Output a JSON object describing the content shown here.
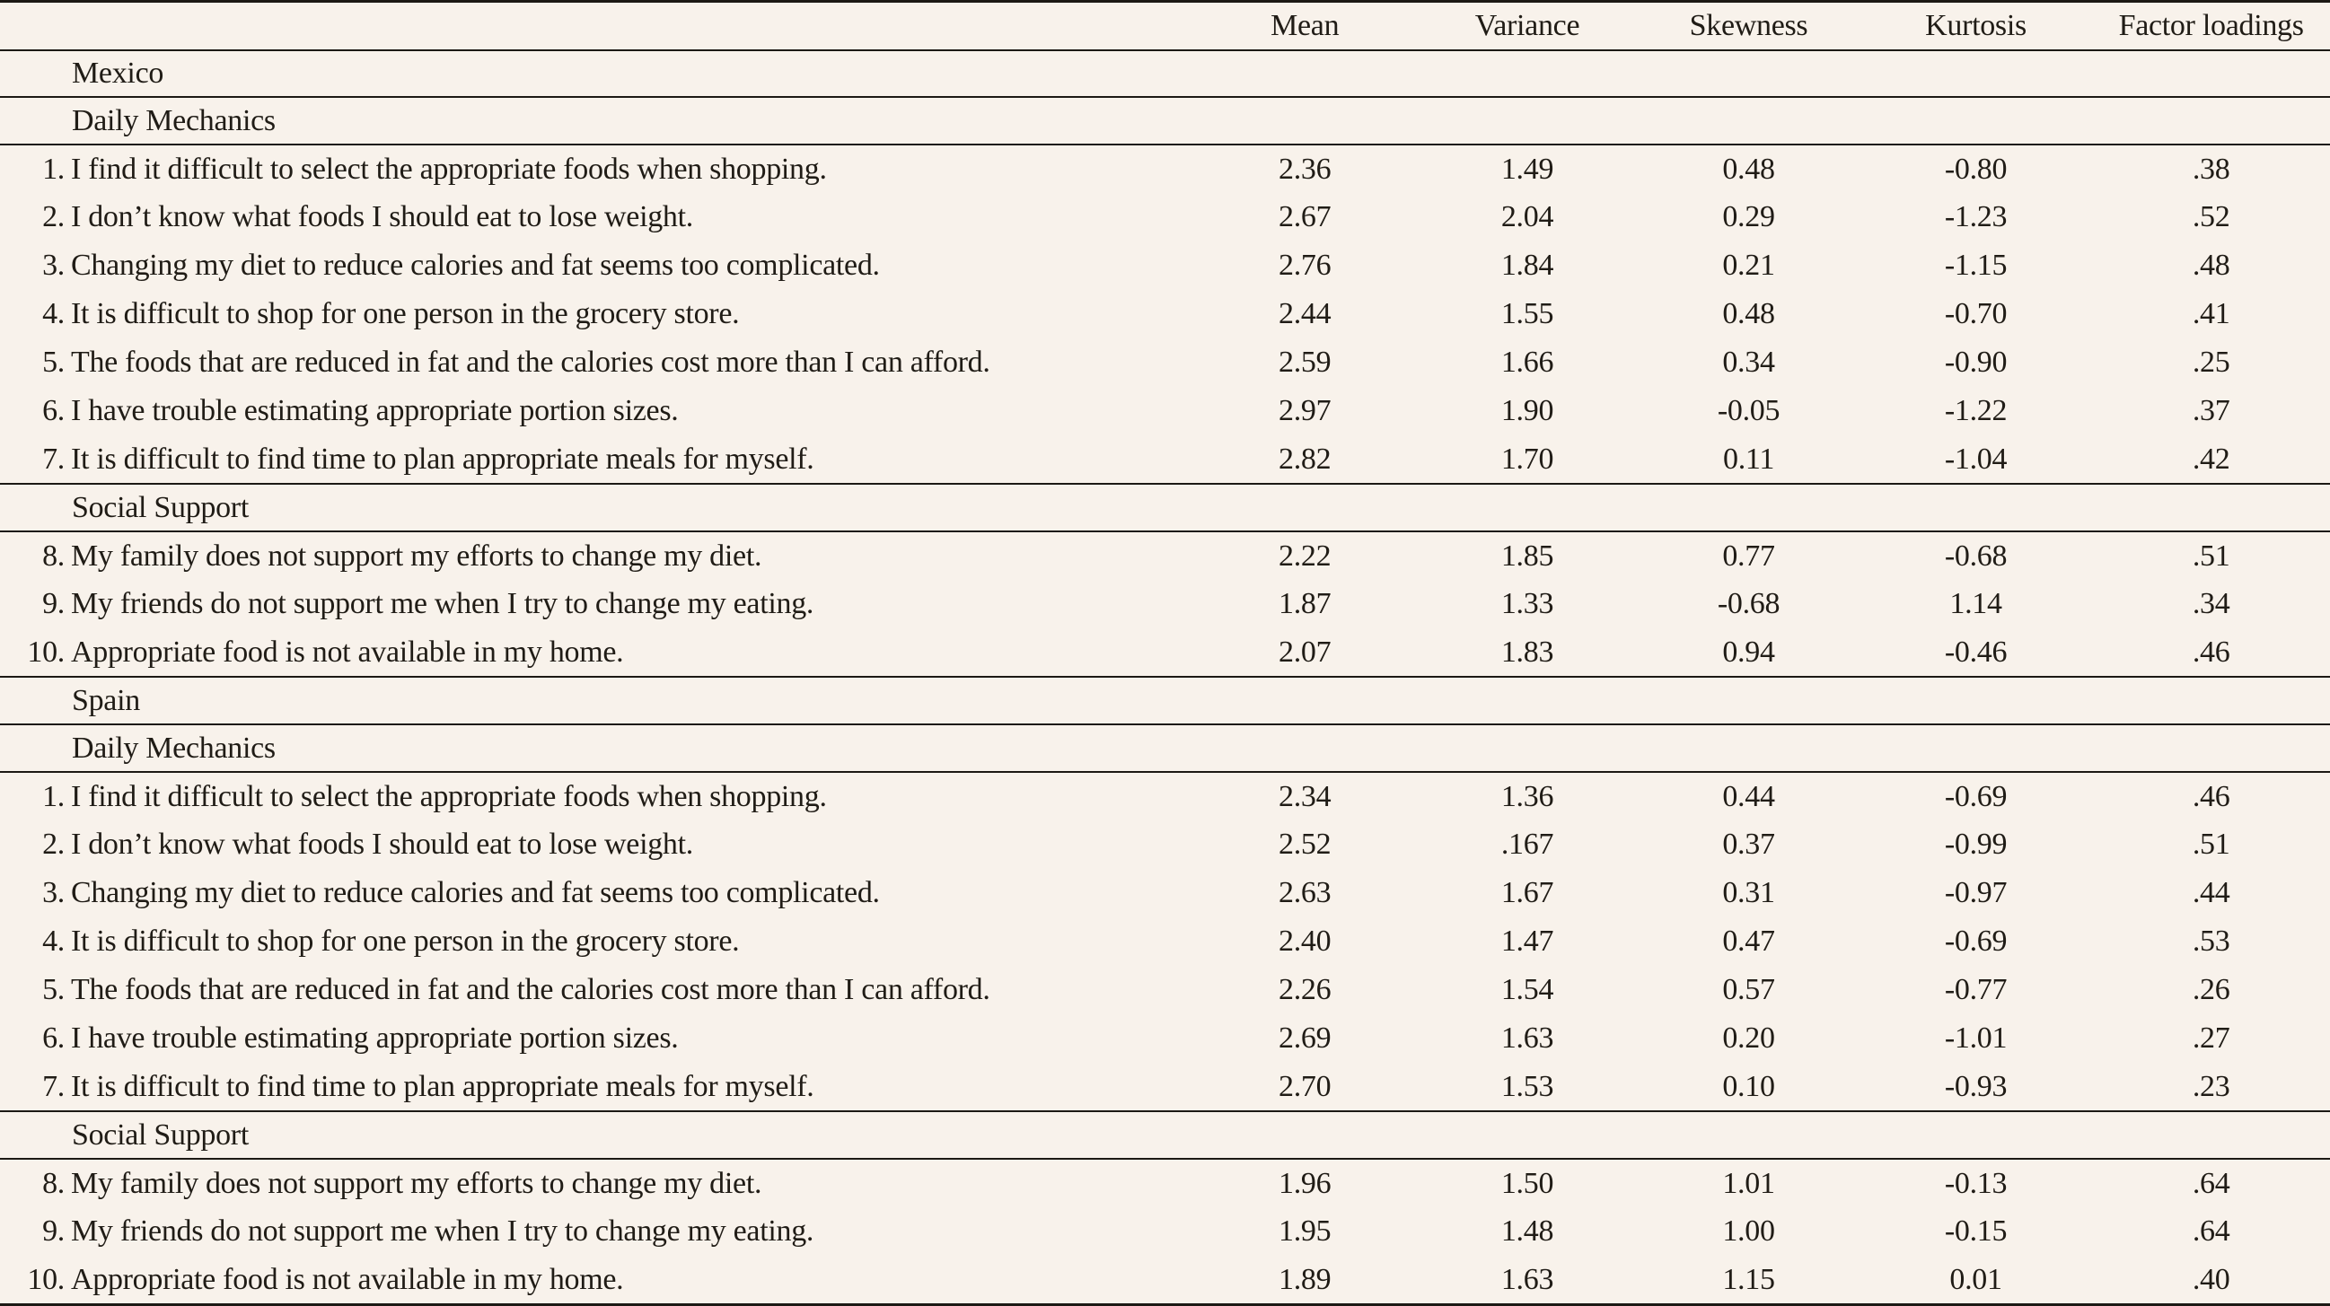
{
  "colors": {
    "background": "#f8f2eb",
    "text": "#201c16",
    "rule": "#1c1914"
  },
  "table": {
    "columns": [
      "",
      "Mean",
      "Variance",
      "Skewness",
      "Kurtosis",
      "Factor loadings"
    ],
    "sections": [
      {
        "country": "Mexico",
        "subscales": [
          {
            "name": "Daily Mechanics",
            "items": [
              {
                "num": "1.",
                "text": "I find it difficult to select the appropriate foods when shopping.",
                "mean": "2.36",
                "variance": "1.49",
                "skewness": "0.48",
                "kurtosis": "-0.80",
                "factor_loading": ".38"
              },
              {
                "num": "2.",
                "text": "I don’t know what foods I should eat to lose weight.",
                "mean": "2.67",
                "variance": "2.04",
                "skewness": "0.29",
                "kurtosis": "-1.23",
                "factor_loading": ".52"
              },
              {
                "num": "3.",
                "text": "Changing my diet to reduce calories and fat seems too complicated.",
                "mean": "2.76",
                "variance": "1.84",
                "skewness": "0.21",
                "kurtosis": "-1.15",
                "factor_loading": ".48"
              },
              {
                "num": "4.",
                "text": "It is difficult to shop for one person in the grocery store.",
                "mean": "2.44",
                "variance": "1.55",
                "skewness": "0.48",
                "kurtosis": "-0.70",
                "factor_loading": ".41"
              },
              {
                "num": "5.",
                "text": "The foods that are reduced in fat and the calories cost more than I can afford.",
                "mean": "2.59",
                "variance": "1.66",
                "skewness": "0.34",
                "kurtosis": "-0.90",
                "factor_loading": ".25"
              },
              {
                "num": "6.",
                "text": "I have trouble estimating appropriate portion sizes.",
                "mean": "2.97",
                "variance": "1.90",
                "skewness": "-0.05",
                "kurtosis": "-1.22",
                "factor_loading": ".37"
              },
              {
                "num": "7.",
                "text": "It is difficult to find time to plan appropriate meals for myself.",
                "mean": "2.82",
                "variance": "1.70",
                "skewness": "0.11",
                "kurtosis": "-1.04",
                "factor_loading": ".42"
              }
            ]
          },
          {
            "name": "Social Support",
            "items": [
              {
                "num": "8.",
                "text": "My family does not support my efforts to change my diet.",
                "mean": "2.22",
                "variance": "1.85",
                "skewness": "0.77",
                "kurtosis": "-0.68",
                "factor_loading": ".51"
              },
              {
                "num": "9.",
                "text": "My friends do not support me when I try to change my eating.",
                "mean": "1.87",
                "variance": "1.33",
                "skewness": "-0.68",
                "kurtosis": "1.14",
                "factor_loading": ".34"
              },
              {
                "num": "10.",
                "text": "Appropriate food is not available in my home.",
                "mean": "2.07",
                "variance": "1.83",
                "skewness": "0.94",
                "kurtosis": "-0.46",
                "factor_loading": ".46"
              }
            ]
          }
        ]
      },
      {
        "country": "Spain",
        "subscales": [
          {
            "name": "Daily Mechanics",
            "items": [
              {
                "num": "1.",
                "text": "I find it difficult to select the appropriate foods when shopping.",
                "mean": "2.34",
                "variance": "1.36",
                "skewness": "0.44",
                "kurtosis": "-0.69",
                "factor_loading": ".46"
              },
              {
                "num": "2.",
                "text": "I don’t know what foods I should eat to lose weight.",
                "mean": "2.52",
                "variance": ".167",
                "skewness": "0.37",
                "kurtosis": "-0.99",
                "factor_loading": ".51"
              },
              {
                "num": "3.",
                "text": "Changing my diet to reduce calories and fat seems too complicated.",
                "mean": "2.63",
                "variance": "1.67",
                "skewness": "0.31",
                "kurtosis": "-0.97",
                "factor_loading": ".44"
              },
              {
                "num": "4.",
                "text": "It is difficult to shop for one person in the grocery store.",
                "mean": "2.40",
                "variance": "1.47",
                "skewness": "0.47",
                "kurtosis": "-0.69",
                "factor_loading": ".53"
              },
              {
                "num": "5.",
                "text": "The foods that are reduced in fat and the calories cost more than I can afford.",
                "mean": "2.26",
                "variance": "1.54",
                "skewness": "0.57",
                "kurtosis": "-0.77",
                "factor_loading": ".26"
              },
              {
                "num": "6.",
                "text": "I have trouble estimating appropriate portion sizes.",
                "mean": "2.69",
                "variance": "1.63",
                "skewness": "0.20",
                "kurtosis": "-1.01",
                "factor_loading": ".27"
              },
              {
                "num": "7.",
                "text": "It is difficult to find time to plan appropriate meals for myself.",
                "mean": "2.70",
                "variance": "1.53",
                "skewness": "0.10",
                "kurtosis": "-0.93",
                "factor_loading": ".23"
              }
            ]
          },
          {
            "name": "Social Support",
            "items": [
              {
                "num": "8.",
                "text": "My family does not support my efforts to change my diet.",
                "mean": "1.96",
                "variance": "1.50",
                "skewness": "1.01",
                "kurtosis": "-0.13",
                "factor_loading": ".64"
              },
              {
                "num": "9.",
                "text": "My friends do not support me when I try to change my eating.",
                "mean": "1.95",
                "variance": "1.48",
                "skewness": "1.00",
                "kurtosis": "-0.15",
                "factor_loading": ".64"
              },
              {
                "num": "10.",
                "text": "Appropriate food is not available in my home.",
                "mean": "1.89",
                "variance": "1.63",
                "skewness": "1.15",
                "kurtosis": "0.01",
                "factor_loading": ".40"
              }
            ]
          }
        ]
      }
    ]
  }
}
